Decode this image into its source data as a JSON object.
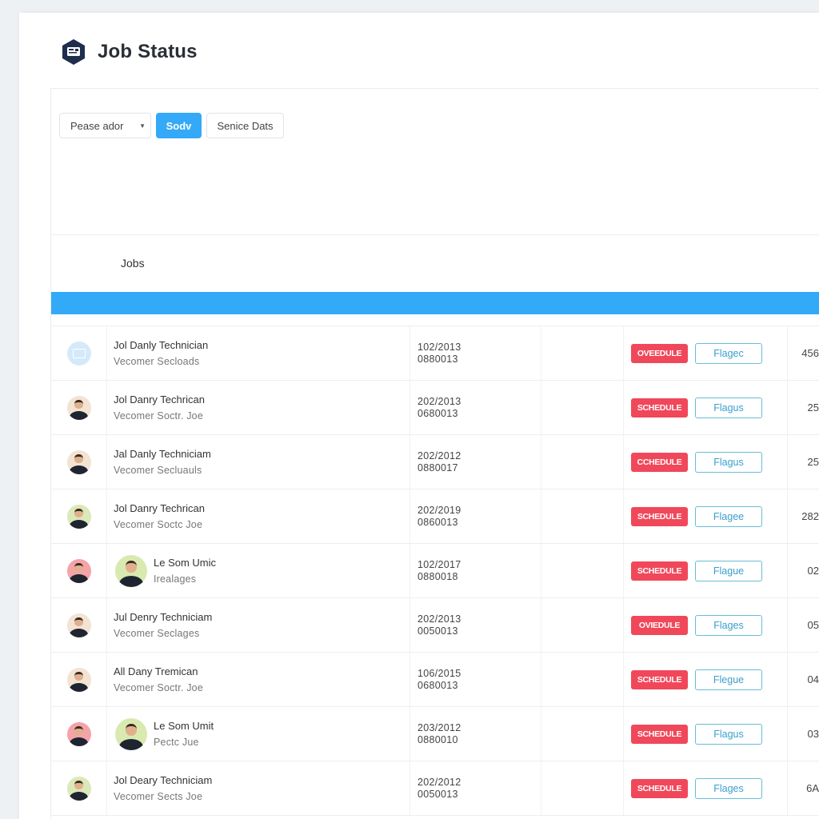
{
  "header": {
    "title": "Job Status",
    "logo_icon": "id-card-hexagon-icon"
  },
  "toolbar": {
    "select_value": "Pease ador",
    "primary_label": "Sodv",
    "secondary_label": "Senice Dats"
  },
  "section": {
    "label": "Jobs"
  },
  "colors": {
    "accent": "#33aaf8",
    "status": "#f0485a",
    "flag_border": "#68bdd6",
    "logo": "#1f2e4d"
  },
  "rows": [
    {
      "avatar": "document",
      "avatar_bg": "#d4eafb",
      "name": "Jol Danly Technician",
      "sub": "Vecomer Secloads",
      "date1": "102/2013",
      "date2": "0880013",
      "status": "OVEEDULE",
      "flag": "Flagec",
      "value": "456"
    },
    {
      "avatar": "person",
      "avatar_bg": "#f3e3d3",
      "name": "Jol Danry Techrican",
      "sub": "Vecomer Soctr. Joe",
      "date1": "202/2013",
      "date2": "0680013",
      "status": "SCHEDULE",
      "flag": "Flagus",
      "value": "25"
    },
    {
      "avatar": "person",
      "avatar_bg": "#f3e3d3",
      "name": "Jal Danly Techniciam",
      "sub": "Vecomer Secluauls",
      "date1": "202/2012",
      "date2": "0880017",
      "status": "CCHEDULE",
      "flag": "Flagus",
      "value": "25"
    },
    {
      "avatar": "person",
      "avatar_bg": "#dbe8b8",
      "name": "Jol Danry Techrican",
      "sub": "Vecomer Soctc Joe",
      "date1": "202/2019",
      "date2": "0860013",
      "status": "SCHEDULE",
      "flag": "Flagee",
      "value": "282"
    },
    {
      "avatar": "person",
      "avatar_bg": "#f4a3a8",
      "second_avatar_bg": "#d8eab0",
      "name": "Le Som Umic",
      "sub": "Irealages",
      "date1": "102/2017",
      "date2": "0880018",
      "status": "SCHEDULE",
      "flag": "Flague",
      "value": "02"
    },
    {
      "avatar": "person",
      "avatar_bg": "#f3e3d3",
      "name": "Jul Denry Techniciam",
      "sub": "Vecomer Seclages",
      "date1": "202/2013",
      "date2": "0050013",
      "status": "OVIEDULE",
      "flag": "Flages",
      "value": "05"
    },
    {
      "avatar": "person",
      "avatar_bg": "#f3e3d3",
      "name": "All Dany Tremican",
      "sub": "Vecomer Soctr. Joe",
      "date1": "106/2015",
      "date2": "0680013",
      "status": "SCHEDULE",
      "flag": "Flegue",
      "value": "04"
    },
    {
      "avatar": "person",
      "avatar_bg": "#f4a3a8",
      "second_avatar_bg": "#d8eab0",
      "name": "Le Som Umit",
      "sub": "Pectc Jue",
      "date1": "203/2012",
      "date2": "0880010",
      "status": "SCHEDULE",
      "flag": "Flagus",
      "value": "03"
    },
    {
      "avatar": "person",
      "avatar_bg": "#dbe8b8",
      "name": "Jol Deary Techniciam",
      "sub": "Vecomer Sects Joe",
      "date1": "202/2012",
      "date2": "0050013",
      "status": "SCHEDULE",
      "flag": "Flages",
      "value": "6A"
    }
  ]
}
